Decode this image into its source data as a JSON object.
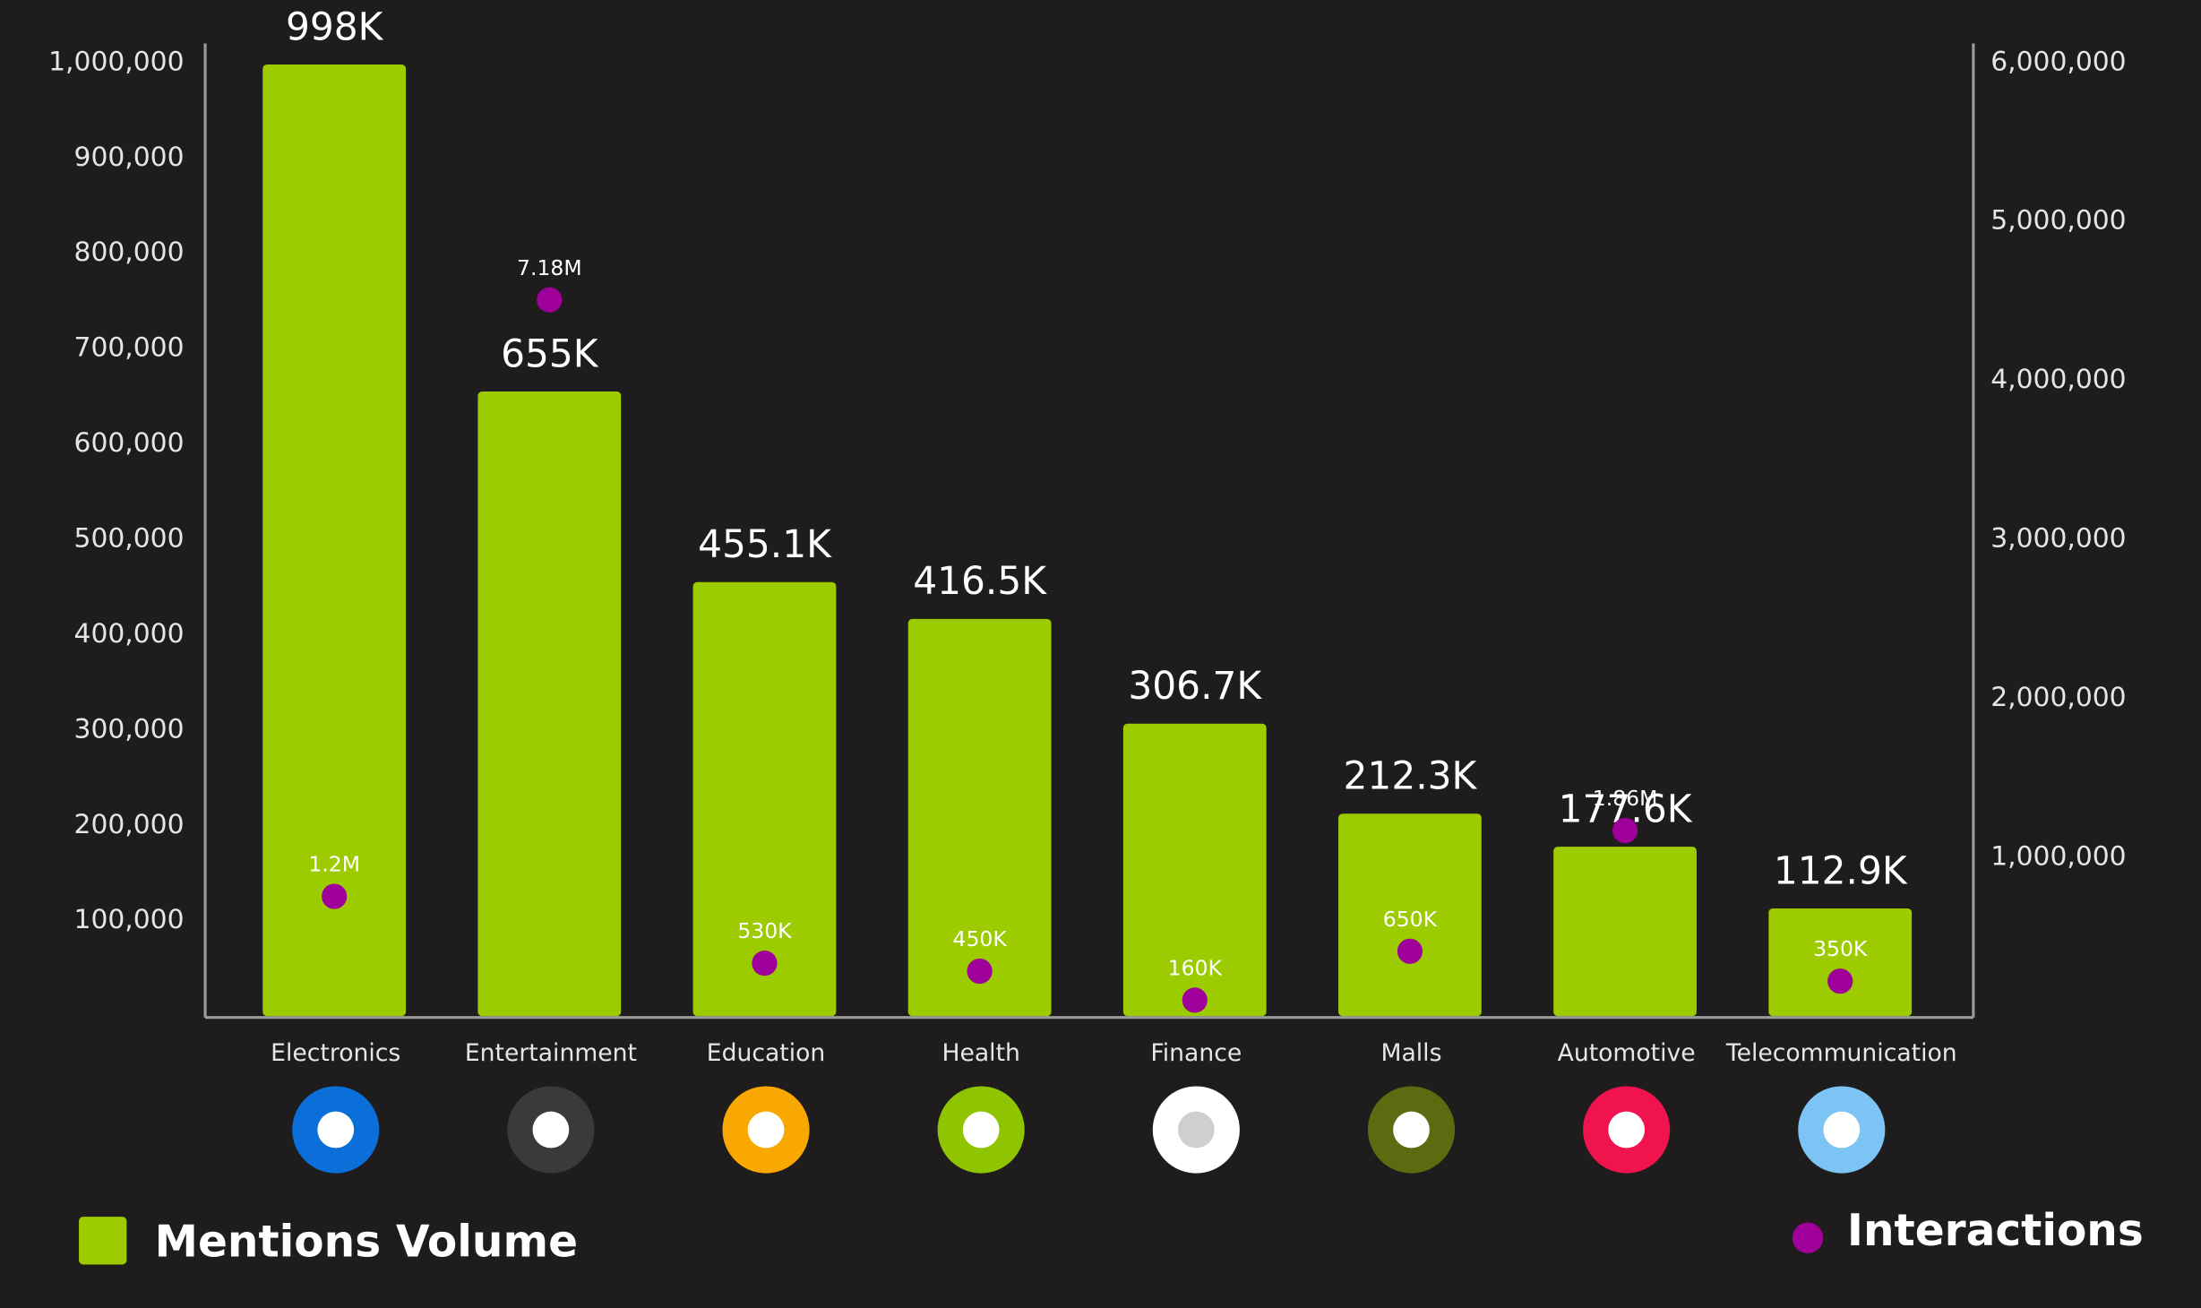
{
  "chart_data": {
    "type": "bar",
    "categories": [
      "Electronics",
      "Entertainment",
      "Education",
      "Health",
      "Finance",
      "Malls",
      "Automotive",
      "Telecommunication"
    ],
    "series": [
      {
        "name": "Mentions Volume",
        "type": "bar",
        "color": "#9ccb00",
        "axis": "y",
        "values": [
          998000,
          655000,
          455100,
          416500,
          306700,
          212300,
          177600,
          112900
        ],
        "value_labels": [
          "998K",
          "655K",
          "455.1K",
          "416.5K",
          "306.7K",
          "212.3K",
          "177.6K",
          "112.9K"
        ]
      },
      {
        "name": "Interactions",
        "type": "scatter",
        "color": "#a0009a",
        "axis": "y3",
        "values": [
          1200000,
          7180000,
          530000,
          450000,
          160000,
          650000,
          1860000,
          350000
        ],
        "value_labels": [
          "1.2M",
          "7.18M",
          "530K",
          "450K",
          "160K",
          "650K",
          "1.86M",
          "350K"
        ]
      }
    ],
    "ylim": [
      0,
      1020000
    ],
    "yticks": [
      {
        "value": 100000,
        "label": "100,000"
      },
      {
        "value": 200000,
        "label": "200,000"
      },
      {
        "value": 300000,
        "label": "300,000"
      },
      {
        "value": 400000,
        "label": "400,000"
      },
      {
        "value": 500000,
        "label": "500,000"
      },
      {
        "value": 600000,
        "label": "600,000"
      },
      {
        "value": 700000,
        "label": "700,000"
      },
      {
        "value": 800000,
        "label": "800,000"
      },
      {
        "value": 900000,
        "label": "900,000"
      },
      {
        "value": 1000000,
        "label": "1,000,000"
      }
    ],
    "y2lim": [
      0,
      6120000
    ],
    "y2ticks": [
      {
        "value": 1000000,
        "label": "1,000,000"
      },
      {
        "value": 2000000,
        "label": "2,000,000"
      },
      {
        "value": 3000000,
        "label": "3,000,000"
      },
      {
        "value": 4000000,
        "label": "4,000,000"
      },
      {
        "value": 5000000,
        "label": "5,000,000"
      },
      {
        "value": 6000000,
        "label": "6,000,000"
      }
    ],
    "y3lim": [
      0,
      9750000
    ],
    "grid": false
  }
}
